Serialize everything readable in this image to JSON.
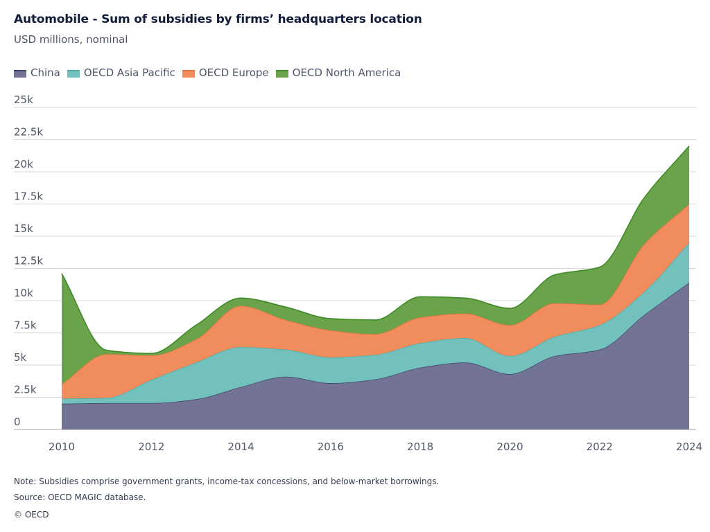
{
  "header": {
    "title": "Automobile - Sum of subsidies by firms’ headquarters location",
    "subtitle": "USD millions, nominal"
  },
  "footer": {
    "note": "Note: Subsidies comprise government grants, income-tax concessions, and below-market borrowings.",
    "source": "Source: OECD MAGIC database.",
    "copyright": "© OECD"
  },
  "chart_data": {
    "type": "area",
    "stacked": true,
    "x": [
      2010,
      2011,
      2012,
      2013,
      2014,
      2015,
      2016,
      2017,
      2018,
      2019,
      2020,
      2021,
      2022,
      2023,
      2024
    ],
    "series": [
      {
        "name": "China",
        "color": "#737495",
        "line": "#3e4a6c",
        "values": [
          2000,
          2050,
          2050,
          2350,
          3300,
          4100,
          3600,
          3900,
          4800,
          5200,
          4300,
          5700,
          6200,
          8900,
          11400
        ]
      },
      {
        "name": "OECD Asia Pacific",
        "color": "#73c1bd",
        "line": "#50aea7",
        "values": [
          400,
          400,
          1800,
          2850,
          3100,
          2100,
          2000,
          1900,
          1900,
          1900,
          1400,
          1500,
          1900,
          1800,
          3100
        ]
      },
      {
        "name": "OECD Europe",
        "color": "#f18d5c",
        "line": "#e8733c",
        "values": [
          1100,
          3400,
          1900,
          1800,
          3200,
          2300,
          2100,
          1600,
          2000,
          1900,
          2400,
          2600,
          1600,
          3700,
          3000
        ]
      },
      {
        "name": "OECD North America",
        "color": "#6ba34c",
        "line": "#3e8a25",
        "values": [
          8600,
          300,
          150,
          1100,
          600,
          1000,
          900,
          1100,
          1600,
          1200,
          1300,
          2200,
          2900,
          3600,
          4500
        ]
      }
    ],
    "ylim": [
      0,
      25000
    ],
    "yticks": [
      0,
      2500,
      5000,
      7500,
      10000,
      12500,
      15000,
      17500,
      20000,
      22500,
      25000
    ],
    "ytick_labels": [
      "0",
      "2.5k",
      "5k",
      "7.5k",
      "10k",
      "12.5k",
      "15k",
      "17.5k",
      "20k",
      "22.5k",
      "25k"
    ],
    "xticks": [
      2010,
      2012,
      2014,
      2016,
      2018,
      2020,
      2022,
      2024
    ],
    "xtick_labels": [
      "2010",
      "2012",
      "2014",
      "2016",
      "2018",
      "2020",
      "2022",
      "2024"
    ],
    "grid": true,
    "legend_position": "top-left"
  }
}
